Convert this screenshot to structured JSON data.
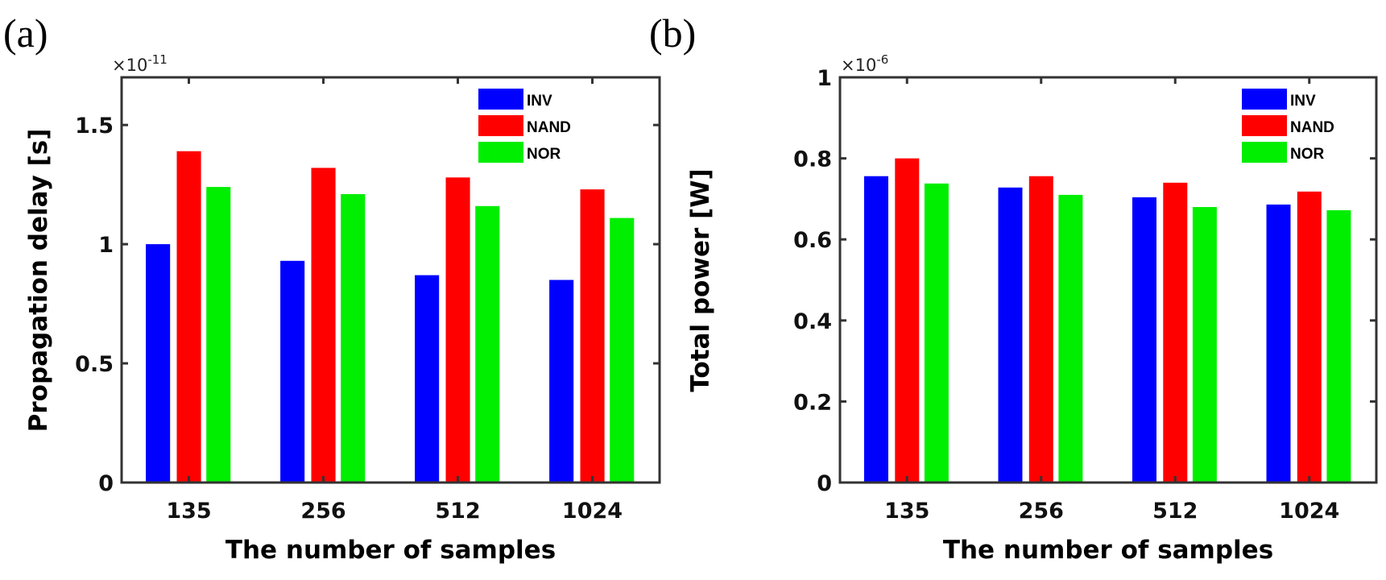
{
  "figure": {
    "colors": {
      "INV": "#0000ff",
      "NAND": "#ff0000",
      "NOR": "#00ee00",
      "axis": "#333333"
    }
  },
  "chart_data": [
    {
      "type": "bar",
      "panel_label": "(a)",
      "title": "",
      "xlabel": "The number of samples",
      "ylabel": "Propagation delay [s]",
      "y_multiplier": "×10",
      "y_multiplier_exp": "-11",
      "categories": [
        "135",
        "256",
        "512",
        "1024"
      ],
      "ylim": [
        0,
        1.7
      ],
      "yticks": [
        0,
        0.5,
        1,
        1.5
      ],
      "ytick_labels": [
        "0",
        "0.5",
        "1",
        "1.5"
      ],
      "grid": false,
      "legend_position": "top-right",
      "series": [
        {
          "name": "INV",
          "values": [
            1.0,
            0.93,
            0.87,
            0.85
          ]
        },
        {
          "name": "NAND",
          "values": [
            1.39,
            1.32,
            1.28,
            1.23
          ]
        },
        {
          "name": "NOR",
          "values": [
            1.24,
            1.21,
            1.16,
            1.11
          ]
        }
      ]
    },
    {
      "type": "bar",
      "panel_label": "(b)",
      "title": "",
      "xlabel": "The number of samples",
      "ylabel": "Total power [W]",
      "y_multiplier": "×10",
      "y_multiplier_exp": "-6",
      "categories": [
        "135",
        "256",
        "512",
        "1024"
      ],
      "ylim": [
        0,
        1
      ],
      "yticks": [
        0,
        0.2,
        0.4,
        0.6,
        0.8,
        1
      ],
      "ytick_labels": [
        "0",
        "0.2",
        "0.4",
        "0.6",
        "0.8",
        "1"
      ],
      "grid": false,
      "legend_position": "top-right",
      "series": [
        {
          "name": "INV",
          "values": [
            0.756,
            0.728,
            0.704,
            0.686
          ]
        },
        {
          "name": "NAND",
          "values": [
            0.8,
            0.756,
            0.74,
            0.718
          ]
        },
        {
          "name": "NOR",
          "values": [
            0.738,
            0.71,
            0.68,
            0.672
          ]
        }
      ]
    }
  ]
}
